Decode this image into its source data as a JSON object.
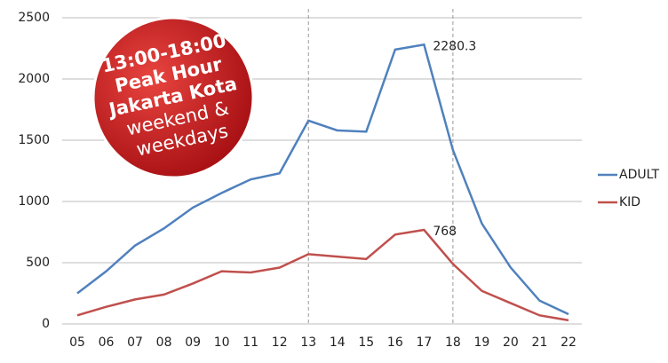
{
  "chart_data": {
    "type": "line",
    "categories": [
      "05",
      "06",
      "07",
      "08",
      "09",
      "10",
      "11",
      "12",
      "13",
      "14",
      "15",
      "16",
      "17",
      "18",
      "19",
      "20",
      "21",
      "22"
    ],
    "series": [
      {
        "name": "ADULT",
        "color": "#4f81bd",
        "values": [
          250,
          430,
          640,
          780,
          950,
          1070,
          1180,
          1230,
          1660,
          1580,
          1570,
          2240,
          2280.3,
          1420,
          820,
          460,
          190,
          80
        ],
        "value_labels": [
          null,
          null,
          null,
          null,
          null,
          null,
          null,
          null,
          null,
          null,
          null,
          null,
          "2280.3",
          null,
          null,
          null,
          null,
          null
        ]
      },
      {
        "name": "KID",
        "color": "#c0504d",
        "values": [
          70,
          140,
          200,
          240,
          330,
          430,
          420,
          460,
          570,
          550,
          530,
          730,
          768,
          490,
          270,
          170,
          70,
          30
        ],
        "value_labels": [
          null,
          null,
          null,
          null,
          null,
          null,
          null,
          null,
          null,
          null,
          null,
          null,
          "768",
          null,
          null,
          null,
          null,
          null
        ]
      }
    ],
    "ylim": [
      0,
      2500
    ],
    "yticks": [
      0,
      500,
      1000,
      1500,
      2000,
      2500
    ],
    "grid": true,
    "highlight_categories": [
      "13",
      "18"
    ],
    "legend": "right",
    "badge": [
      "13:00-18:00",
      "Peak Hour",
      "Jakarta Kota",
      "weekend &",
      "weekdays"
    ],
    "badge_color": "#c8171c"
  }
}
